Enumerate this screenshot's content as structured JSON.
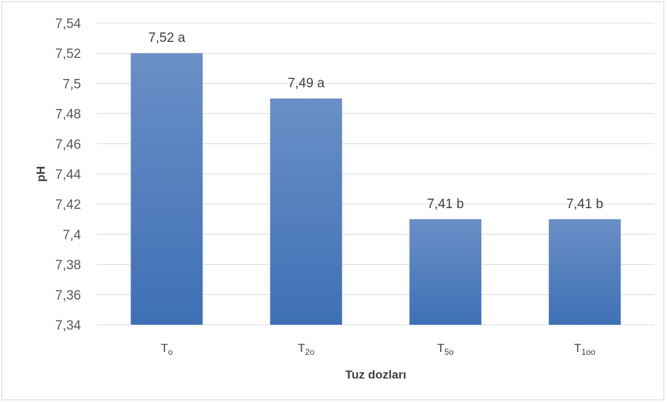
{
  "chart_data": {
    "type": "bar",
    "categories": [
      {
        "base": "T",
        "sub": "o"
      },
      {
        "base": "T",
        "sub": "2o"
      },
      {
        "base": "T",
        "sub": "5o"
      },
      {
        "base": "T",
        "sub": "1oo"
      }
    ],
    "values": [
      7.52,
      7.49,
      7.41,
      7.41
    ],
    "data_labels": [
      "7,52 a",
      "7,49 a",
      "7,41 b",
      "7,41 b"
    ],
    "xlabel": "Tuz dozları",
    "ylabel": "pH",
    "ylim": [
      7.34,
      7.54
    ],
    "yticks": [
      "7,34",
      "7,36",
      "7,38",
      "7,4",
      "7,42",
      "7,44",
      "7,46",
      "7,48",
      "7,5",
      "7,52",
      "7,54"
    ],
    "grid": true,
    "colors": {
      "bar_top": "#6a8fc6",
      "bar_bottom": "#3e70b6"
    }
  }
}
